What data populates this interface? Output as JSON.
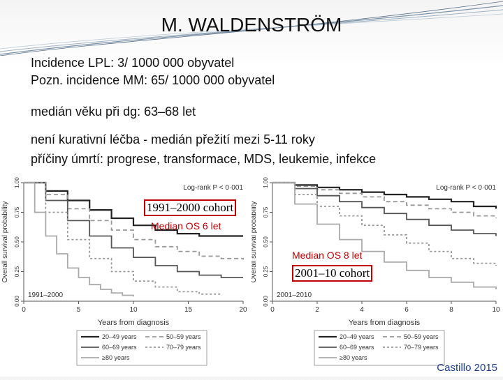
{
  "slide": {
    "title": "M. WALDENSTRÖM",
    "lines": [
      "Incidence LPL:  3/ 1000 000 obyvatel",
      "Pozn. incidence MM: 65/ 1000 000 obyvatel",
      "medián věku při dg: 63–68 let",
      "není kurativní léčba  -  medián přežití mezi 5-11 roky",
      "příčiny úmrtí:   progrese, transformace, MDS, leukemie, infekce"
    ],
    "credit": "Castillo 2015"
  },
  "chart_data": [
    {
      "type": "line",
      "title": "",
      "xlabel": "Years from diagnosis",
      "ylabel": "Overall survival probability",
      "xlim": [
        0,
        20
      ],
      "ylim": [
        0,
        1
      ],
      "x_ticks": [
        "0",
        "5",
        "10",
        "15",
        "20"
      ],
      "y_ticks": [
        "0.00",
        "0.25",
        "0.50",
        "0.75",
        "1.00"
      ],
      "annotation": "Log-rank P < 0·001",
      "cohort_label": "1991–2000 cohort",
      "corner_label": "1991–2000",
      "median_label": "Median OS 6 let",
      "legend": [
        "20–49 years",
        "50–59 years",
        "60–69 years",
        "70–79 years",
        "≥80 years"
      ],
      "series": [
        {
          "name": "20–49 years",
          "x": [
            0,
            2,
            4,
            6,
            8,
            10,
            12,
            14,
            16,
            18,
            20
          ],
          "y": [
            1.0,
            0.93,
            0.85,
            0.77,
            0.7,
            0.64,
            0.6,
            0.57,
            0.55,
            0.55,
            0.55
          ]
        },
        {
          "name": "50–59 years",
          "x": [
            0,
            2,
            4,
            6,
            8,
            10,
            12,
            14,
            16,
            18,
            20
          ],
          "y": [
            1.0,
            0.9,
            0.78,
            0.68,
            0.6,
            0.52,
            0.46,
            0.42,
            0.38,
            0.36,
            0.35
          ]
        },
        {
          "name": "60–69 years",
          "x": [
            0,
            2,
            4,
            6,
            8,
            10,
            12,
            14,
            16,
            18,
            20
          ],
          "y": [
            1.0,
            0.85,
            0.68,
            0.55,
            0.45,
            0.37,
            0.3,
            0.25,
            0.22,
            0.2,
            0.2
          ]
        },
        {
          "name": "70–79 years",
          "x": [
            0,
            2,
            4,
            6,
            8,
            10,
            12,
            14,
            16,
            18
          ],
          "y": [
            1.0,
            0.75,
            0.52,
            0.36,
            0.25,
            0.17,
            0.12,
            0.08,
            0.06,
            0.05
          ]
        },
        {
          "name": "≥80 years",
          "x": [
            0,
            1,
            2,
            3,
            4,
            5,
            6,
            7,
            8,
            9,
            10
          ],
          "y": [
            1.0,
            0.75,
            0.55,
            0.4,
            0.28,
            0.2,
            0.14,
            0.1,
            0.07,
            0.05,
            0.04
          ]
        }
      ]
    },
    {
      "type": "line",
      "title": "",
      "xlabel": "Years from diagnosis",
      "ylabel": "Overall survival probability",
      "xlim": [
        0,
        10
      ],
      "ylim": [
        0,
        1
      ],
      "x_ticks": [
        "0",
        "2",
        "4",
        "6",
        "8",
        "10"
      ],
      "y_ticks": [
        "0.00",
        "0.25",
        "0.50",
        "0.75",
        "1.00"
      ],
      "annotation": "Log-rank P < 0·001",
      "cohort_label": "2001–10 cohort",
      "corner_label": "2001–2010",
      "median_label": "Median OS 8 let",
      "legend": [
        "20–49 years",
        "50–59 years",
        "60–69 years",
        "70–79 years",
        "≥80 years"
      ],
      "series": [
        {
          "name": "20–49 years",
          "x": [
            0,
            1,
            2,
            3,
            4,
            5,
            6,
            7,
            8,
            9,
            10
          ],
          "y": [
            1.0,
            0.98,
            0.96,
            0.94,
            0.92,
            0.9,
            0.88,
            0.86,
            0.84,
            0.8,
            0.78
          ]
        },
        {
          "name": "50–59 years",
          "x": [
            0,
            1,
            2,
            3,
            4,
            5,
            6,
            7,
            8,
            9,
            10
          ],
          "y": [
            1.0,
            0.97,
            0.94,
            0.91,
            0.88,
            0.84,
            0.81,
            0.78,
            0.75,
            0.72,
            0.7
          ]
        },
        {
          "name": "60–69 years",
          "x": [
            0,
            1,
            2,
            3,
            4,
            5,
            6,
            7,
            8,
            9,
            10
          ],
          "y": [
            1.0,
            0.95,
            0.89,
            0.84,
            0.79,
            0.74,
            0.69,
            0.64,
            0.6,
            0.57,
            0.55
          ]
        },
        {
          "name": "70–79 years",
          "x": [
            0,
            1,
            2,
            3,
            4,
            5,
            6,
            7,
            8,
            9,
            10
          ],
          "y": [
            1.0,
            0.9,
            0.8,
            0.72,
            0.64,
            0.56,
            0.49,
            0.42,
            0.36,
            0.32,
            0.3
          ]
        },
        {
          "name": "≥80 years",
          "x": [
            0,
            1,
            2,
            3,
            4,
            5,
            6,
            7,
            8,
            9,
            10
          ],
          "y": [
            1.0,
            0.82,
            0.65,
            0.52,
            0.42,
            0.33,
            0.26,
            0.2,
            0.16,
            0.12,
            0.1
          ]
        }
      ]
    }
  ]
}
